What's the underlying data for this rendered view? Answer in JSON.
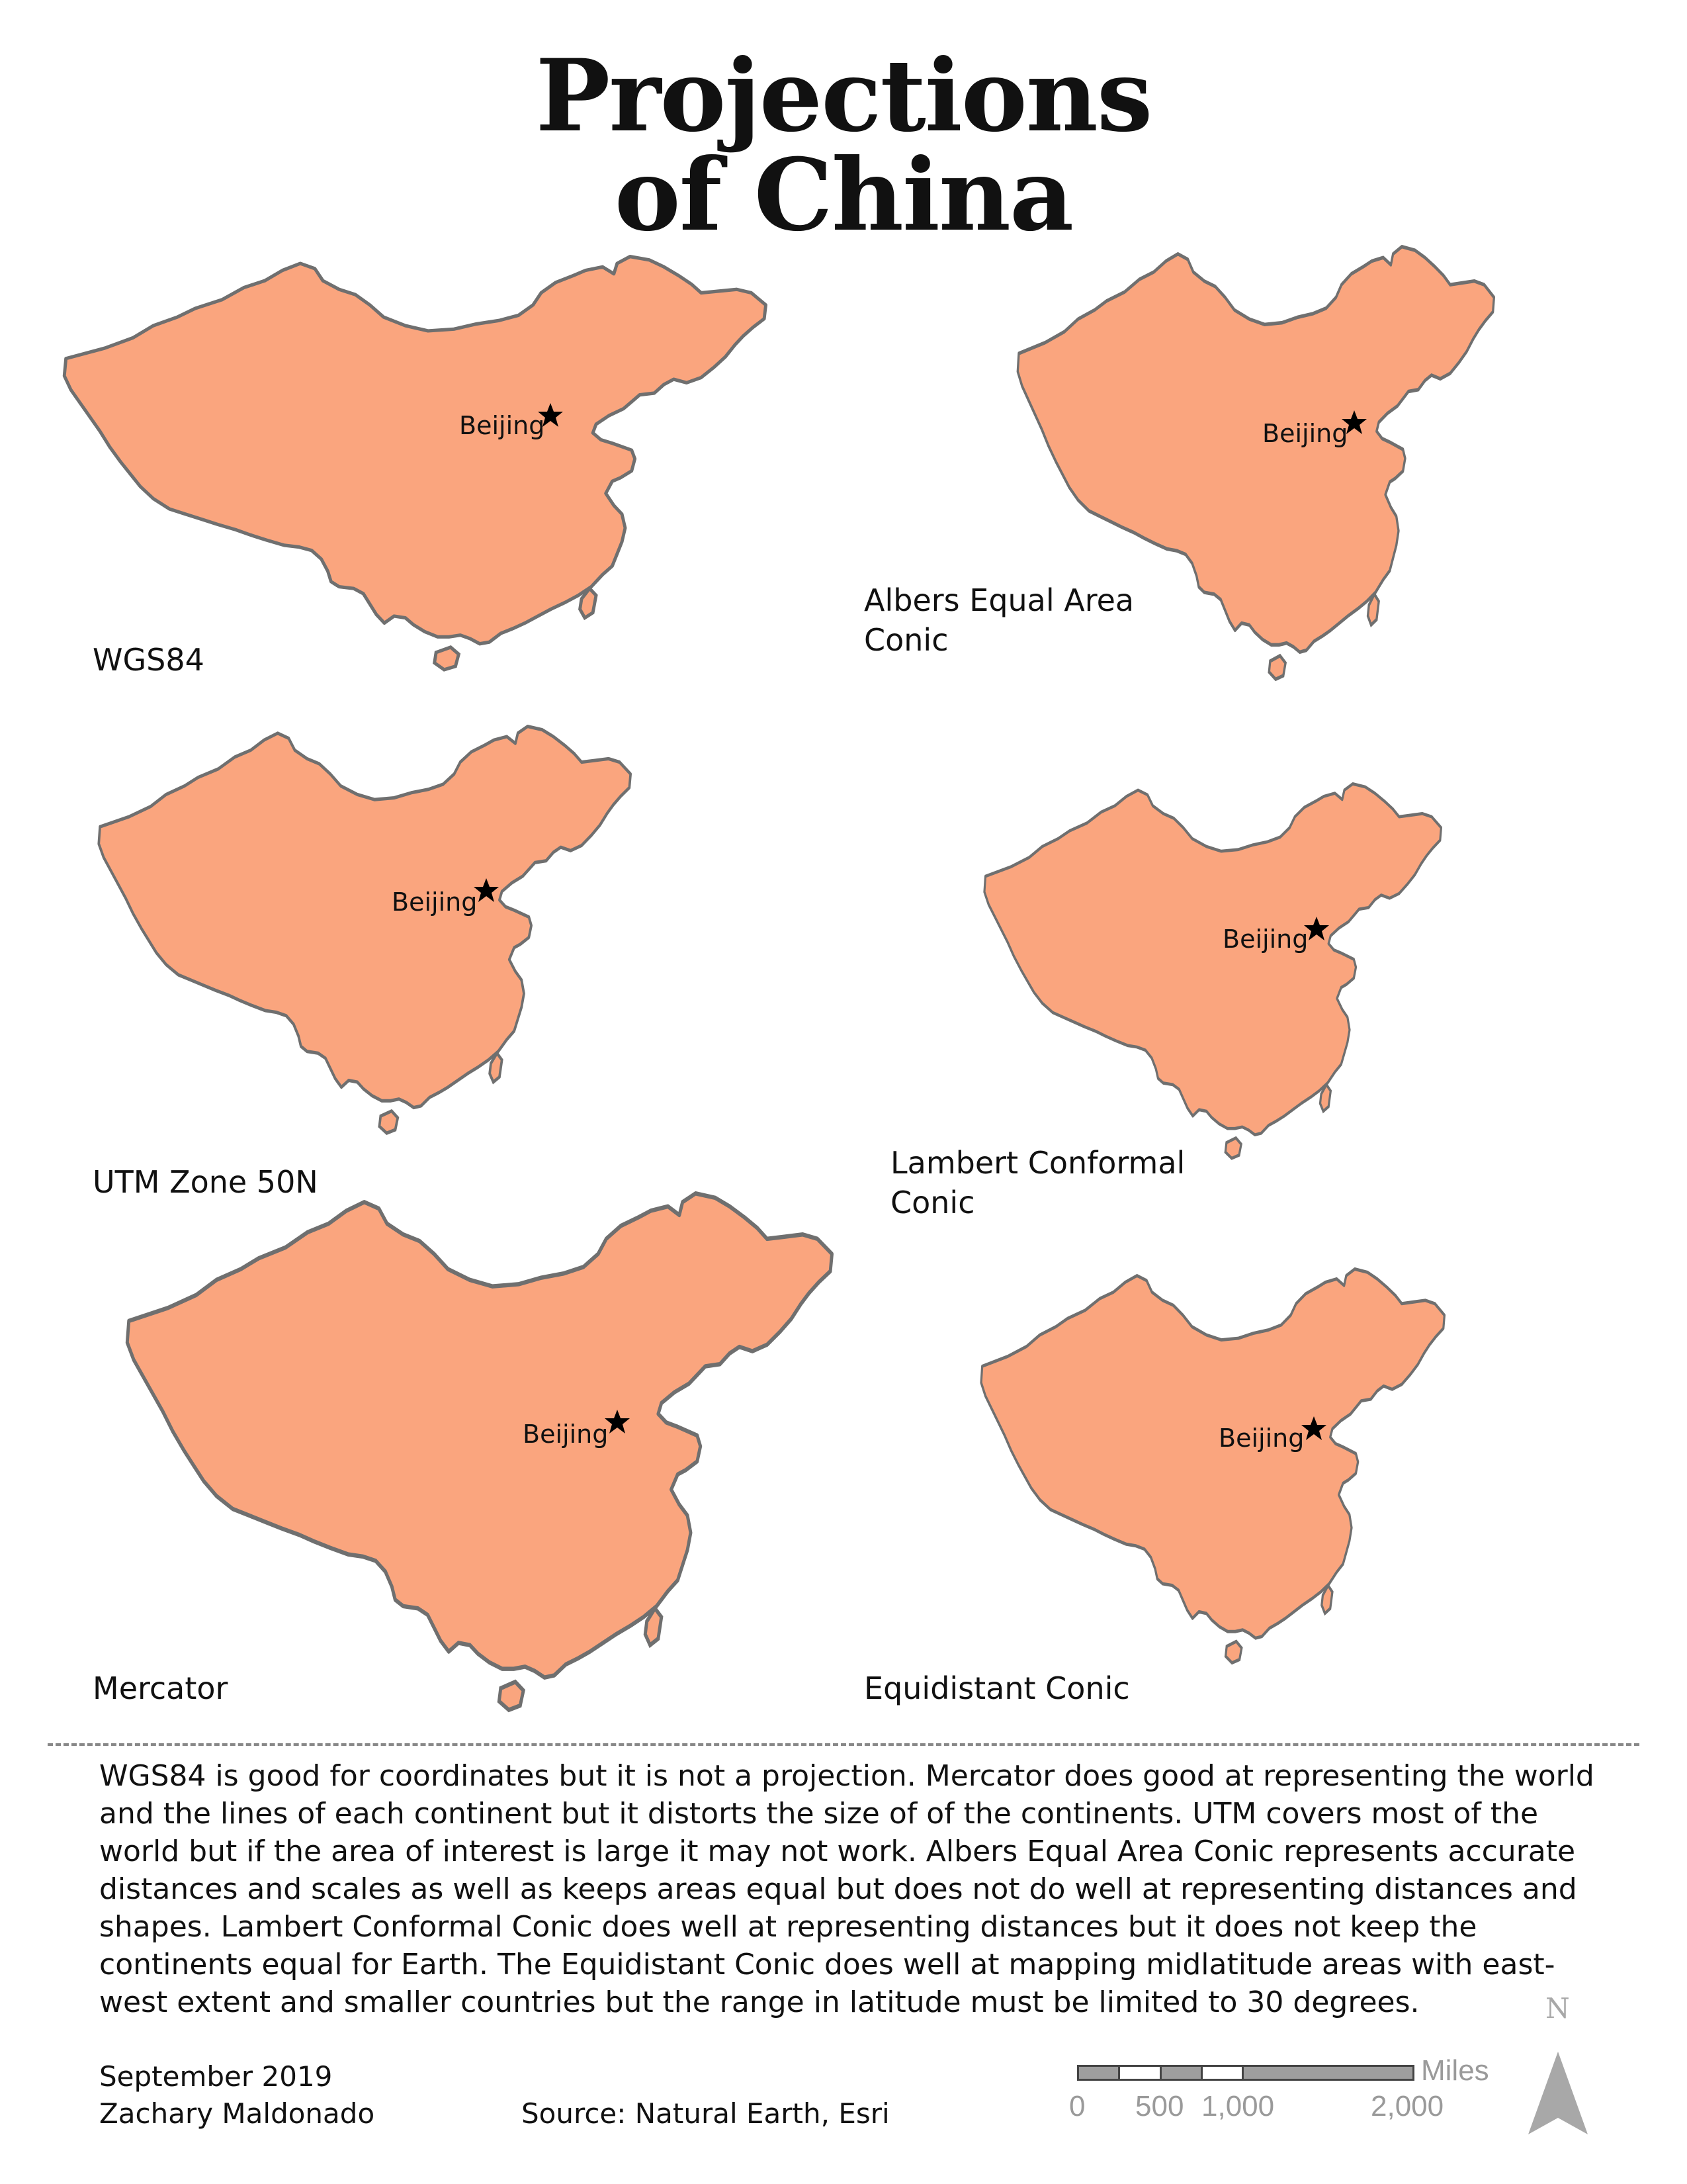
{
  "title": {
    "line1": "Projections",
    "line2": "of China"
  },
  "city_label": "Beijing",
  "maps": [
    {
      "id": "wgs84",
      "label": "WGS84",
      "label2": ""
    },
    {
      "id": "albers",
      "label": "Albers Equal Area",
      "label2": "Conic"
    },
    {
      "id": "utm",
      "label": "UTM Zone 50N",
      "label2": ""
    },
    {
      "id": "lambert",
      "label": "Lambert Conformal",
      "label2": "Conic"
    },
    {
      "id": "mercator",
      "label": "Mercator",
      "label2": ""
    },
    {
      "id": "equidistant",
      "label": "Equidistant Conic",
      "label2": ""
    }
  ],
  "description": "WGS84 is good for coordinates but it is not a projection. Mercator does good at representing the world and the lines of each continent but it distorts the size of of the continents. UTM covers most of the world but if the area of interest is large it may not work. Albers Equal Area Conic represents accurate distances and scales as well as keeps areas equal but does not do well at representing distances and shapes. Lambert Conformal Conic does well at representing distances but it does not keep the continents equal for Earth. The Equidistant Conic does well at mapping midlatitude areas with east-west extent and smaller countries but the range in latitude must be limited to 30 degrees.",
  "footer": {
    "date": "September 2019",
    "author": "Zachary Maldonado",
    "source": "Source: Natural Earth, Esri"
  },
  "scale_bar": {
    "units": "Miles",
    "ticks": [
      "0",
      "500",
      "1,000",
      "2,000"
    ]
  },
  "north_arrow": {
    "letter": "N"
  },
  "colors": {
    "land": "#faa57e",
    "outline": "#6f6f6f",
    "text": "#111111",
    "scale": "#9a9a9a"
  }
}
